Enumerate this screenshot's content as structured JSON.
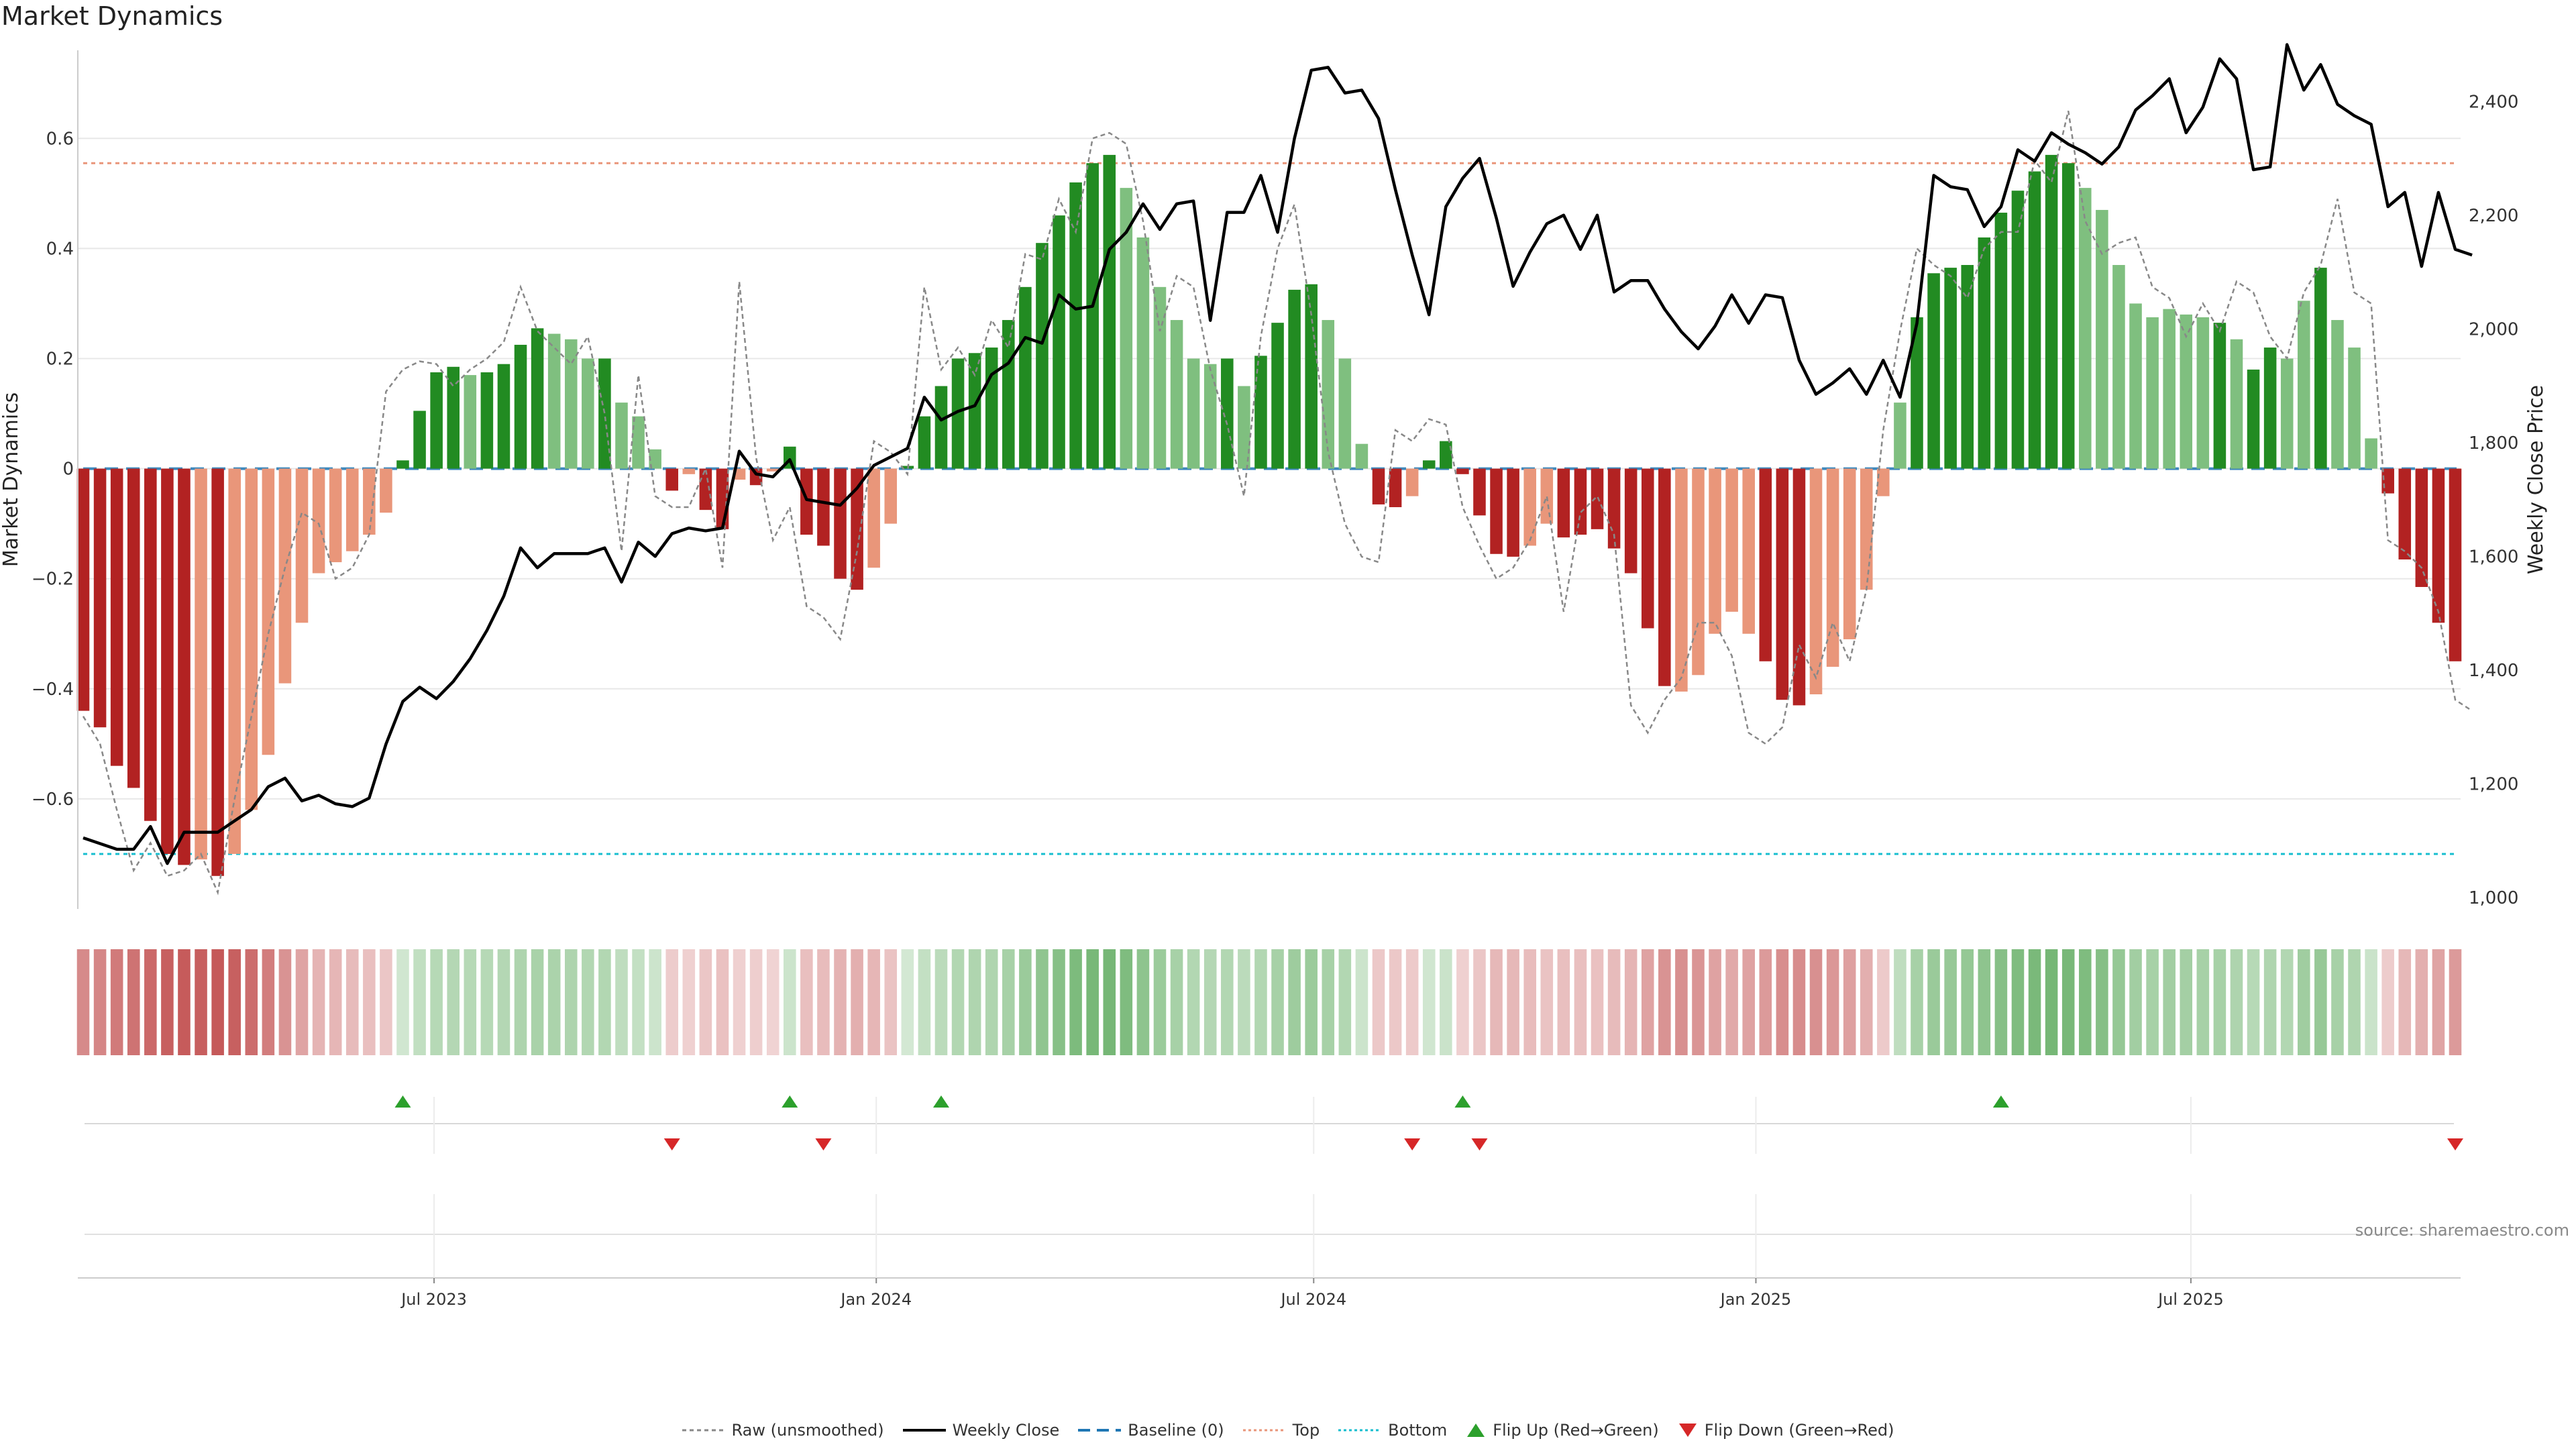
{
  "page": {
    "title": "Market Dynamics",
    "source": "source: sharemaestro.com"
  },
  "legend": [
    {
      "label": "Raw (unsmoothed)",
      "key": "raw"
    },
    {
      "label": "Weekly Close",
      "key": "close"
    },
    {
      "label": "Baseline (0)",
      "key": "baseline"
    },
    {
      "label": "Top",
      "key": "top"
    },
    {
      "label": "Bottom",
      "key": "bottom"
    },
    {
      "label": "Flip Up (Red→Green)",
      "key": "flipup"
    },
    {
      "label": "Flip Down (Green→Red)",
      "key": "flipdown"
    }
  ],
  "colors": {
    "dark_green": "#228B22",
    "light_green": "#7FBF7F",
    "dark_red": "#B22222",
    "light_red": "#E9967A",
    "close": "#000000",
    "raw": "#888888",
    "baseline": "#1F77B4",
    "top": "#E9967A",
    "bottom": "#17BECF",
    "flip_up": "#2CA02C",
    "flip_down": "#D62728"
  },
  "chart_data": {
    "type": "bar",
    "title": "Market Dynamics",
    "ylabel": "Market Dynamics",
    "y2label": "Weekly Close Price",
    "ylim": [
      -0.8,
      0.76
    ],
    "y2lim": [
      980,
      2490
    ],
    "yticks": [
      "−0.6",
      "−0.4",
      "−0.2",
      "0",
      "0.2",
      "0.4",
      "0.6"
    ],
    "y2ticks": [
      "1,000",
      "1,200",
      "1,400",
      "1,600",
      "1,800",
      "2,000",
      "2,200",
      "2,400"
    ],
    "xticks": [
      "Jul 2023",
      "Jan 2024",
      "Jul 2024",
      "Jan 2025",
      "Jul 2025"
    ],
    "xtick_dates": [
      "2023-07-01",
      "2024-01-01",
      "2024-07-01",
      "2025-01-01",
      "2025-07-01"
    ],
    "start_date": "2023-02-05",
    "top_threshold": 0.555,
    "bottom_threshold": -0.7,
    "bars": [
      -0.44,
      -0.47,
      -0.54,
      -0.58,
      -0.64,
      -0.7,
      -0.72,
      -0.71,
      -0.74,
      -0.7,
      -0.62,
      -0.52,
      -0.39,
      -0.28,
      -0.19,
      -0.17,
      -0.15,
      -0.12,
      -0.08,
      0.015,
      0.105,
      0.175,
      0.185,
      0.17,
      0.175,
      0.19,
      0.225,
      0.255,
      0.245,
      0.235,
      0.2,
      0.2,
      0.12,
      0.095,
      0.035,
      -0.04,
      -0.01,
      -0.075,
      -0.11,
      -0.02,
      -0.03,
      -0.005,
      0.04,
      -0.12,
      -0.14,
      -0.2,
      -0.22,
      -0.18,
      -0.1,
      0.005,
      0.095,
      0.15,
      0.2,
      0.21,
      0.22,
      0.27,
      0.33,
      0.41,
      0.46,
      0.52,
      0.555,
      0.57,
      0.51,
      0.42,
      0.33,
      0.27,
      0.2,
      0.19,
      0.2,
      0.15,
      0.205,
      0.265,
      0.325,
      0.335,
      0.27,
      0.2,
      0.045,
      -0.065,
      -0.07,
      -0.05,
      0.015,
      0.05,
      -0.01,
      -0.085,
      -0.155,
      -0.16,
      -0.14,
      -0.1,
      -0.125,
      -0.12,
      -0.11,
      -0.145,
      -0.19,
      -0.29,
      -0.395,
      -0.405,
      -0.375,
      -0.3,
      -0.26,
      -0.3,
      -0.35,
      -0.42,
      -0.43,
      -0.41,
      -0.36,
      -0.31,
      -0.22,
      -0.05,
      0.12,
      0.275,
      0.355,
      0.365,
      0.37,
      0.42,
      0.465,
      0.505,
      0.54,
      0.57,
      0.555,
      0.51,
      0.47,
      0.37,
      0.3,
      0.275,
      0.29,
      0.28,
      0.275,
      0.265,
      0.235,
      0.18,
      0.22,
      0.2,
      0.305,
      0.365,
      0.27,
      0.22,
      0.055,
      -0.045,
      -0.165,
      -0.215,
      -0.28,
      -0.35
    ],
    "bar_shades": [
      "dark",
      "dark",
      "dark",
      "dark",
      "dark",
      "dark",
      "dark",
      "light",
      "dark",
      "light",
      "light",
      "light",
      "light",
      "light",
      "light",
      "light",
      "light",
      "light",
      "light",
      "dark",
      "dark",
      "dark",
      "dark",
      "light",
      "dark",
      "dark",
      "dark",
      "dark",
      "light",
      "light",
      "light",
      "dark",
      "light",
      "light",
      "light",
      "dark",
      "light",
      "dark",
      "dark",
      "light",
      "dark",
      "light",
      "dark",
      "dark",
      "dark",
      "dark",
      "dark",
      "light",
      "light",
      "dark",
      "dark",
      "dark",
      "dark",
      "dark",
      "dark",
      "dark",
      "dark",
      "dark",
      "dark",
      "dark",
      "dark",
      "dark",
      "light",
      "light",
      "light",
      "light",
      "light",
      "light",
      "dark",
      "light",
      "dark",
      "dark",
      "dark",
      "dark",
      "light",
      "light",
      "light",
      "dark",
      "dark",
      "light",
      "dark",
      "dark",
      "dark",
      "dark",
      "dark",
      "dark",
      "light",
      "light",
      "dark",
      "dark",
      "dark",
      "dark",
      "dark",
      "dark",
      "dark",
      "light",
      "light",
      "light",
      "light",
      "light",
      "dark",
      "dark",
      "dark",
      "light",
      "light",
      "light",
      "light",
      "light",
      "light",
      "dark",
      "dark",
      "dark",
      "dark",
      "dark",
      "dark",
      "dark",
      "dark",
      "dark",
      "dark",
      "light",
      "light",
      "light",
      "light",
      "light",
      "light",
      "light",
      "light",
      "dark",
      "light",
      "dark",
      "dark",
      "light",
      "light",
      "dark",
      "light",
      "light",
      "light",
      "dark",
      "dark",
      "dark",
      "dark",
      "dark",
      "dark",
      "dark"
    ],
    "raw": [
      -0.45,
      -0.5,
      -0.62,
      -0.73,
      -0.68,
      -0.74,
      -0.73,
      -0.7,
      -0.77,
      -0.6,
      -0.45,
      -0.3,
      -0.18,
      -0.08,
      -0.1,
      -0.2,
      -0.18,
      -0.12,
      0.14,
      0.18,
      0.195,
      0.19,
      0.15,
      0.18,
      0.2,
      0.23,
      0.33,
      0.25,
      0.22,
      0.19,
      0.24,
      0.1,
      -0.15,
      0.17,
      -0.05,
      -0.07,
      -0.07,
      0.0,
      -0.18,
      0.34,
      0.02,
      -0.13,
      -0.07,
      -0.25,
      -0.27,
      -0.31,
      -0.15,
      0.05,
      0.03,
      -0.01,
      0.33,
      0.18,
      0.22,
      0.17,
      0.27,
      0.22,
      0.39,
      0.38,
      0.49,
      0.43,
      0.6,
      0.61,
      0.59,
      0.45,
      0.25,
      0.35,
      0.33,
      0.18,
      0.08,
      -0.05,
      0.24,
      0.4,
      0.48,
      0.28,
      0.03,
      -0.1,
      -0.16,
      -0.17,
      0.07,
      0.05,
      0.09,
      0.08,
      -0.07,
      -0.14,
      -0.2,
      -0.18,
      -0.13,
      -0.05,
      -0.26,
      -0.08,
      -0.05,
      -0.12,
      -0.43,
      -0.48,
      -0.42,
      -0.38,
      -0.28,
      -0.28,
      -0.34,
      -0.48,
      -0.5,
      -0.47,
      -0.32,
      -0.38,
      -0.28,
      -0.35,
      -0.22,
      0.07,
      0.25,
      0.4,
      0.37,
      0.35,
      0.31,
      0.4,
      0.43,
      0.43,
      0.56,
      0.52,
      0.65,
      0.45,
      0.39,
      0.41,
      0.42,
      0.33,
      0.31,
      0.24,
      0.3,
      0.25,
      0.34,
      0.32,
      0.24,
      0.2,
      0.32,
      0.37,
      0.49,
      0.32,
      0.3,
      -0.13,
      -0.15,
      -0.18,
      -0.26,
      -0.42,
      -0.44
    ],
    "close": [
      1105,
      1095,
      1085,
      1085,
      1125,
      1060,
      1115,
      1115,
      1115,
      1135,
      1155,
      1195,
      1210,
      1170,
      1180,
      1165,
      1160,
      1175,
      1270,
      1345,
      1370,
      1350,
      1380,
      1420,
      1470,
      1530,
      1615,
      1580,
      1605,
      1605,
      1605,
      1615,
      1555,
      1625,
      1600,
      1640,
      1650,
      1645,
      1650,
      1785,
      1745,
      1740,
      1770,
      1700,
      1695,
      1690,
      1720,
      1760,
      1775,
      1790,
      1880,
      1840,
      1855,
      1865,
      1920,
      1940,
      1985,
      1975,
      2060,
      2035,
      2040,
      2140,
      2170,
      2220,
      2175,
      2220,
      2225,
      2015,
      2205,
      2205,
      2270,
      2170,
      2335,
      2455,
      2460,
      2415,
      2420,
      2370,
      2245,
      2130,
      2025,
      2215,
      2265,
      2300,
      2195,
      2075,
      2135,
      2185,
      2200,
      2140,
      2200,
      2065,
      2085,
      2085,
      2035,
      1995,
      1965,
      2005,
      2060,
      2010,
      2060,
      2055,
      1945,
      1885,
      1905,
      1930,
      1885,
      1945,
      1880,
      2010,
      2270,
      2250,
      2245,
      2180,
      2215,
      2315,
      2295,
      2345,
      2325,
      2310,
      2290,
      2320,
      2385,
      2410,
      2440,
      2345,
      2390,
      2475,
      2440,
      2280,
      2285,
      2500,
      2420,
      2465,
      2395,
      2375,
      2360,
      2215,
      2240,
      2110,
      2240,
      2140,
      2130
    ]
  },
  "flip_up_dates": [
    "2023-06-18",
    "2023-11-26",
    "2024-01-28",
    "2024-09-01",
    "2025-04-13"
  ],
  "flip_down_dates": [
    "2023-10-08",
    "2023-12-10",
    "2024-08-11",
    "2024-09-08",
    "2025-10-19"
  ]
}
